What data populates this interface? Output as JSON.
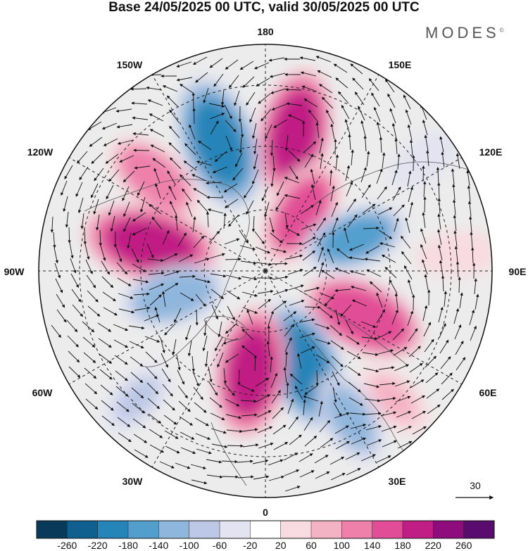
{
  "title": "Base 24/05/2025 00 UTC, valid 30/05/2025 00 UTC",
  "brand": "MODES",
  "brand_mark": "©",
  "longitude_labels": {
    "top": "180",
    "bottom": "0",
    "left": "90W",
    "right": "90E",
    "upper_left": "150W",
    "upper_right": "150E",
    "mid_left_upper": "120W",
    "mid_right_upper": "120E",
    "mid_left_lower": "60W",
    "mid_right_lower": "60E",
    "lower_left": "30W",
    "lower_right": "30E"
  },
  "vector_reference": {
    "label": "30"
  },
  "colorbar": {
    "ticks": [
      "-260",
      "-220",
      "-180",
      "-140",
      "-100",
      "-60",
      "-20",
      "20",
      "60",
      "100",
      "140",
      "180",
      "220",
      "260"
    ],
    "colors": [
      "#0a3a5a",
      "#10608f",
      "#2584b8",
      "#529fcd",
      "#8fb6dc",
      "#bcc8e5",
      "#e3e3f1",
      "#ffffff",
      "#f8dbe0",
      "#f4b3c4",
      "#ee80aa",
      "#e14d96",
      "#c01e84",
      "#8e0c7d",
      "#5a0c6e"
    ]
  },
  "anomaly_centers": [
    {
      "lon": 168,
      "r": 0.62,
      "value": 200
    },
    {
      "lon": -160,
      "r": 0.6,
      "value": -210
    },
    {
      "lon": -130,
      "r": 0.64,
      "value": 130
    },
    {
      "lon": -103,
      "r": 0.52,
      "value": 220
    },
    {
      "lon": -75,
      "r": 0.42,
      "value": -130
    },
    {
      "lon": 148,
      "r": 0.3,
      "value": 160
    },
    {
      "lon": 110,
      "r": 0.42,
      "value": -140
    },
    {
      "lon": 65,
      "r": 0.48,
      "value": 180
    },
    {
      "lon": 22,
      "r": 0.45,
      "value": -200
    },
    {
      "lon": -8,
      "r": 0.45,
      "value": 200
    },
    {
      "lon": 45,
      "r": 0.8,
      "value": 70
    },
    {
      "lon": -45,
      "r": 0.8,
      "value": -60
    },
    {
      "lon": 30,
      "r": 0.75,
      "value": -100
    },
    {
      "lon": 125,
      "r": 0.85,
      "value": -50
    },
    {
      "lon": 95,
      "r": 0.85,
      "value": 60
    }
  ]
}
